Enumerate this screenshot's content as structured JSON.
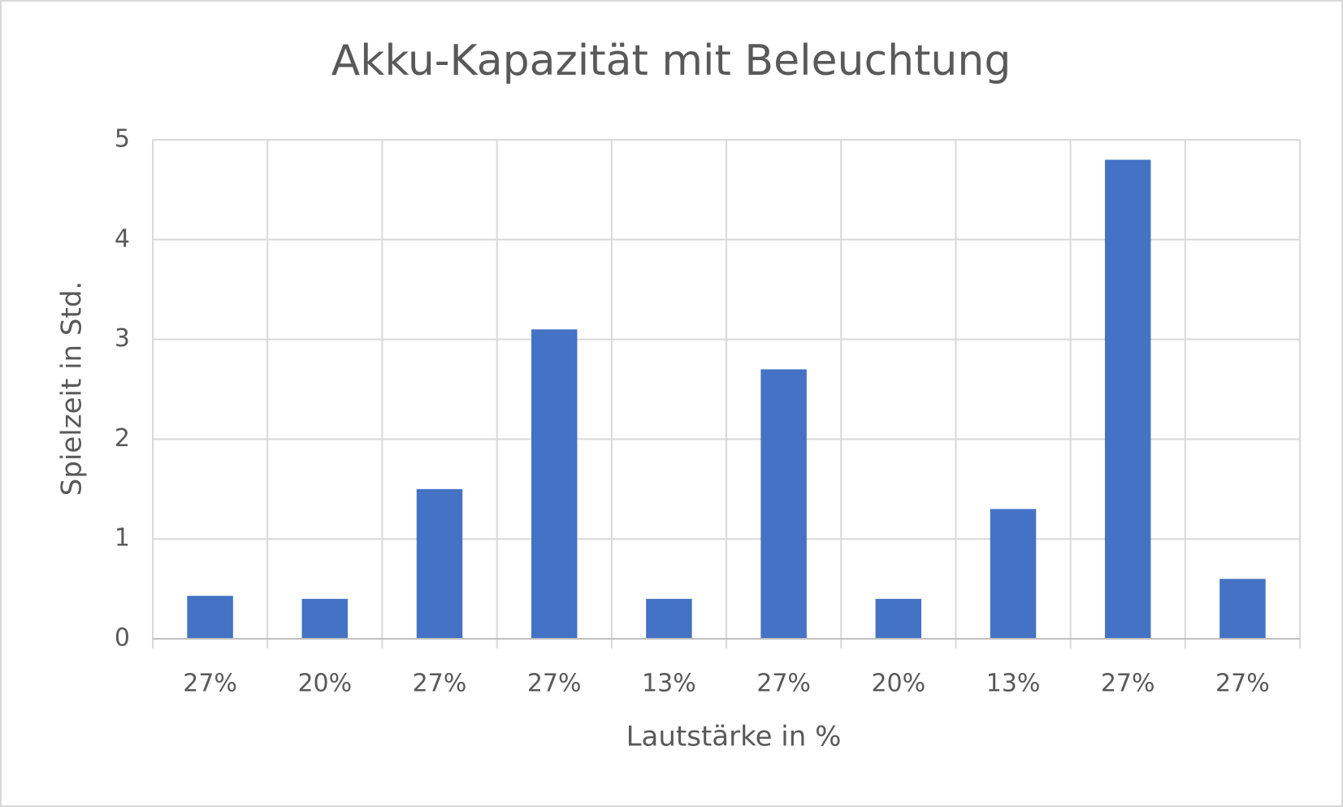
{
  "chart_data": {
    "type": "bar",
    "title": "Akku-Kapazität mit Beleuchtung",
    "x_label": "Lautstärke in %",
    "y_label": "Spielzeit in Std.",
    "categories": [
      "27%",
      "20%",
      "27%",
      "27%",
      "13%",
      "27%",
      "20%",
      "13%",
      "27%",
      "27%"
    ],
    "values": [
      0.43,
      0.4,
      1.5,
      3.1,
      0.4,
      2.7,
      0.4,
      1.3,
      4.8,
      0.6
    ],
    "color": "#4472c4",
    "ylim": [
      0,
      5
    ],
    "yticks": [
      0,
      1,
      2,
      3,
      4,
      5
    ],
    "grid": true
  }
}
